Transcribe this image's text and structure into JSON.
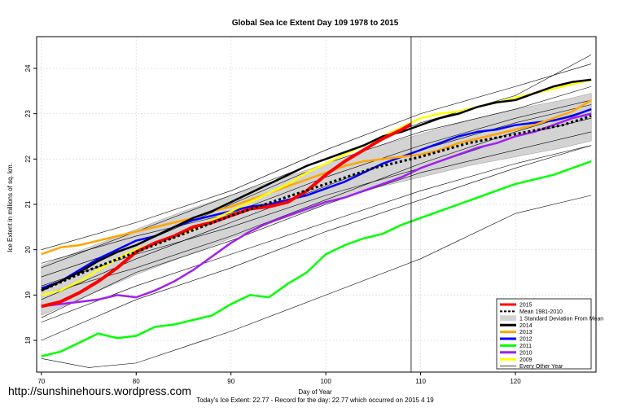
{
  "watermark": "http://sunshinehours.wordpress.com",
  "chart_data": {
    "type": "line",
    "title": "Global Sea Ice Extent Day 109 1978 to 2015",
    "xlabel": "Day of Year",
    "ylabel": "Ice Extent in millions of sq. km.",
    "caption": "Today's Ice Extent: 22.77  - Record for the day: 22.77 which occurred on 2015 4 19",
    "xlim": [
      69.5,
      128.5
    ],
    "ylim": [
      17.3,
      24.7
    ],
    "xticks": [
      70,
      80,
      90,
      100,
      110,
      120
    ],
    "yticks": [
      18,
      19,
      20,
      21,
      22,
      23,
      24
    ],
    "grid": true,
    "current_day_marker": 109,
    "legend_position": "bottom-right",
    "colors": {
      "2015": "#ff0000",
      "mean": "#000000",
      "band": "#d3d3d3",
      "2014": "#000000",
      "2013": "#ffa500",
      "2012": "#0000ff",
      "2011": "#00ff00",
      "2010": "#a020f0",
      "2009": "#ffff00",
      "other": "#000000"
    },
    "legend": [
      {
        "label": "2015",
        "key": "s2015"
      },
      {
        "label": "Mean 1981-2010",
        "key": "mean"
      },
      {
        "label": "1 Standard Deviation From Mean",
        "key": "band"
      },
      {
        "label": "2014",
        "key": "s2014"
      },
      {
        "label": "2013",
        "key": "s2013"
      },
      {
        "label": "2012",
        "key": "s2012"
      },
      {
        "label": "2011",
        "key": "s2011"
      },
      {
        "label": "2010",
        "key": "s2010"
      },
      {
        "label": "2009",
        "key": "s2009"
      },
      {
        "label": "Every Other Year",
        "key": "other"
      }
    ],
    "mean": {
      "x": [
        70,
        75,
        80,
        85,
        90,
        95,
        100,
        105,
        110,
        115,
        120,
        125,
        128
      ],
      "y": [
        19.1,
        19.55,
        19.95,
        20.35,
        20.75,
        21.1,
        21.45,
        21.8,
        22.05,
        22.35,
        22.55,
        22.75,
        22.95
      ]
    },
    "band": {
      "x": [
        70,
        75,
        80,
        85,
        90,
        95,
        100,
        105,
        110,
        115,
        120,
        125,
        128
      ],
      "upper": [
        19.65,
        20.05,
        20.45,
        20.85,
        21.2,
        21.55,
        21.9,
        22.25,
        22.55,
        22.85,
        23.1,
        23.3,
        23.45
      ],
      "lower": [
        18.55,
        19.0,
        19.45,
        19.85,
        20.25,
        20.65,
        21.0,
        21.35,
        21.6,
        21.85,
        22.05,
        22.25,
        22.4
      ]
    },
    "series": [
      {
        "key": "s2011",
        "name": "2011",
        "x": [
          70,
          72,
          74,
          76,
          78,
          80,
          82,
          84,
          86,
          88,
          90,
          92,
          94,
          96,
          98,
          100,
          102,
          104,
          106,
          108,
          110,
          112,
          114,
          116,
          118,
          120,
          122,
          124,
          126,
          128
        ],
        "y": [
          17.65,
          17.75,
          17.95,
          18.15,
          18.05,
          18.1,
          18.3,
          18.35,
          18.45,
          18.55,
          18.8,
          19.0,
          18.95,
          19.25,
          19.5,
          19.9,
          20.1,
          20.25,
          20.35,
          20.55,
          20.7,
          20.85,
          21.0,
          21.15,
          21.3,
          21.45,
          21.55,
          21.65,
          21.8,
          21.95
        ]
      },
      {
        "key": "s2010",
        "name": "2010",
        "x": [
          70,
          72,
          74,
          76,
          78,
          80,
          82,
          84,
          86,
          88,
          90,
          92,
          94,
          96,
          98,
          100,
          102,
          104,
          106,
          108,
          110,
          112,
          114,
          116,
          118,
          120,
          122,
          124,
          126,
          128
        ],
        "y": [
          18.75,
          18.8,
          18.85,
          18.9,
          19.0,
          18.95,
          19.1,
          19.3,
          19.55,
          19.85,
          20.15,
          20.4,
          20.6,
          20.75,
          20.9,
          21.05,
          21.15,
          21.3,
          21.45,
          21.6,
          21.8,
          21.95,
          22.1,
          22.25,
          22.35,
          22.5,
          22.6,
          22.75,
          22.9,
          23.0
        ]
      },
      {
        "key": "s2012",
        "name": "2012",
        "x": [
          70,
          72,
          74,
          76,
          78,
          80,
          82,
          84,
          86,
          88,
          90,
          92,
          94,
          96,
          98,
          100,
          102,
          104,
          106,
          108,
          110,
          112,
          114,
          116,
          118,
          120,
          122,
          124,
          126,
          128
        ],
        "y": [
          19.15,
          19.3,
          19.55,
          19.8,
          20.0,
          20.2,
          20.3,
          20.5,
          20.65,
          20.75,
          20.85,
          20.95,
          21.0,
          21.1,
          21.2,
          21.35,
          21.5,
          21.7,
          21.9,
          22.05,
          22.2,
          22.35,
          22.5,
          22.6,
          22.65,
          22.75,
          22.8,
          22.85,
          22.95,
          23.1
        ]
      },
      {
        "key": "s2013",
        "name": "2013",
        "x": [
          70,
          72,
          74,
          76,
          78,
          80,
          82,
          84,
          86,
          88,
          90,
          92,
          94,
          96,
          98,
          100,
          102,
          104,
          106,
          108,
          110,
          112,
          114,
          116,
          118,
          120,
          122,
          124,
          126,
          128
        ],
        "y": [
          19.9,
          20.05,
          20.1,
          20.2,
          20.3,
          20.4,
          20.5,
          20.6,
          20.7,
          20.85,
          20.95,
          21.1,
          21.25,
          21.4,
          21.55,
          21.7,
          21.85,
          21.95,
          22.0,
          22.05,
          22.1,
          22.2,
          22.35,
          22.45,
          22.55,
          22.65,
          22.75,
          22.9,
          23.05,
          23.3
        ]
      },
      {
        "key": "s2009",
        "name": "2009",
        "x": [
          70,
          72,
          74,
          76,
          78,
          80,
          82,
          84,
          86,
          88,
          90,
          92,
          94,
          96,
          98,
          100,
          102,
          104,
          106,
          108,
          110,
          112,
          114,
          116,
          118,
          120,
          122,
          124,
          126,
          128
        ],
        "y": [
          19.0,
          19.1,
          19.3,
          19.55,
          19.8,
          20.0,
          20.15,
          20.3,
          20.45,
          20.65,
          20.85,
          21.05,
          21.25,
          21.45,
          21.7,
          21.9,
          22.1,
          22.3,
          22.5,
          22.7,
          22.9,
          23.0,
          23.05,
          23.15,
          23.25,
          23.35,
          23.45,
          23.55,
          23.65,
          23.75
        ]
      },
      {
        "key": "s2014",
        "name": "2014",
        "x": [
          70,
          72,
          74,
          76,
          78,
          80,
          82,
          84,
          86,
          88,
          90,
          92,
          94,
          96,
          98,
          100,
          102,
          104,
          106,
          108,
          110,
          112,
          114,
          116,
          118,
          120,
          122,
          124,
          126,
          128
        ],
        "y": [
          19.1,
          19.3,
          19.5,
          19.75,
          19.95,
          20.1,
          20.3,
          20.5,
          20.7,
          20.85,
          21.05,
          21.25,
          21.45,
          21.65,
          21.85,
          22.0,
          22.15,
          22.3,
          22.5,
          22.6,
          22.75,
          22.9,
          23.0,
          23.15,
          23.25,
          23.3,
          23.45,
          23.6,
          23.7,
          23.75
        ]
      },
      {
        "key": "s2015",
        "name": "2015",
        "x": [
          70,
          72,
          74,
          76,
          78,
          80,
          82,
          84,
          86,
          88,
          90,
          92,
          94,
          96,
          98,
          100,
          102,
          104,
          106,
          108,
          109
        ],
        "y": [
          18.75,
          18.85,
          19.05,
          19.3,
          19.6,
          19.95,
          20.15,
          20.3,
          20.5,
          20.6,
          20.75,
          20.9,
          20.95,
          21.05,
          21.3,
          21.65,
          21.95,
          22.2,
          22.45,
          22.65,
          22.77
        ]
      }
    ],
    "other_years": [
      {
        "x": [
          70,
          80,
          90,
          100,
          110,
          120,
          128
        ],
        "y": [
          18.5,
          19.5,
          20.2,
          21.0,
          21.7,
          22.2,
          22.6
        ]
      },
      {
        "x": [
          70,
          80,
          90,
          100,
          110,
          120,
          128
        ],
        "y": [
          19.7,
          20.3,
          20.8,
          21.6,
          22.3,
          22.9,
          23.3
        ]
      },
      {
        "x": [
          70,
          80,
          90,
          100,
          110,
          120,
          128
        ],
        "y": [
          18.9,
          19.8,
          20.6,
          21.4,
          22.2,
          22.8,
          23.2
        ]
      },
      {
        "x": [
          70,
          80,
          90,
          100,
          110,
          120,
          128
        ],
        "y": [
          19.4,
          20.1,
          21.0,
          21.9,
          22.6,
          23.1,
          23.6
        ]
      },
      {
        "x": [
          70,
          80,
          90,
          100,
          110,
          120,
          128
        ],
        "y": [
          18.4,
          19.2,
          19.9,
          20.6,
          21.3,
          21.9,
          22.3
        ]
      },
      {
        "x": [
          70,
          80,
          90,
          100,
          110,
          120,
          128
        ],
        "y": [
          20.0,
          20.6,
          21.3,
          22.2,
          23.0,
          23.6,
          24.1
        ]
      },
      {
        "x": [
          70,
          80,
          90,
          100,
          110,
          120,
          128
        ],
        "y": [
          19.2,
          19.9,
          20.5,
          21.2,
          21.8,
          22.5,
          22.9
        ]
      },
      {
        "x": [
          70,
          80,
          90,
          100,
          110,
          120,
          128
        ],
        "y": [
          18.0,
          18.9,
          19.6,
          20.4,
          21.1,
          21.8,
          22.3
        ]
      },
      {
        "x": [
          70,
          75,
          80,
          90,
          100,
          110,
          120,
          128
        ],
        "y": [
          17.6,
          17.4,
          17.5,
          18.2,
          19.0,
          19.8,
          20.8,
          21.2
        ]
      },
      {
        "x": [
          70,
          80,
          90,
          100,
          110,
          120,
          128
        ],
        "y": [
          19.6,
          20.4,
          21.2,
          22.0,
          22.8,
          23.4,
          24.3
        ]
      },
      {
        "x": [
          70,
          80,
          90,
          100,
          110,
          120,
          128
        ],
        "y": [
          19.0,
          19.6,
          20.3,
          21.1,
          21.9,
          22.6,
          23.1
        ]
      }
    ]
  }
}
